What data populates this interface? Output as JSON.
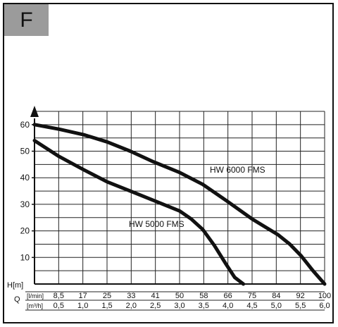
{
  "badge": {
    "label": "F"
  },
  "chart_data": {
    "type": "line",
    "title": "",
    "ylabel": "H[m]",
    "xlabel": "Q",
    "ylim": [
      0,
      65
    ],
    "y_ticks": [
      10,
      20,
      30,
      40,
      50,
      60
    ],
    "x_unit_primary": "[l/min]",
    "x_unit_secondary": "[m³/h]",
    "x_ticks_lmin": [
      "8,5",
      "17",
      "25",
      "33",
      "41",
      "50",
      "58",
      "66",
      "75",
      "84",
      "92",
      "100"
    ],
    "x_ticks_m3h": [
      "0,5",
      "1,0",
      "1,5",
      "2,0",
      "2,5",
      "3,0",
      "3,5",
      "4,0",
      "4,5",
      "5,0",
      "5,5",
      "6,0"
    ],
    "xlim": [
      0,
      100
    ],
    "grid": true,
    "series": [
      {
        "name": "HW 6000 FMS",
        "x": [
          0,
          8.5,
          17,
          25,
          33,
          41,
          50,
          58,
          66,
          75,
          84,
          88,
          92,
          96,
          100
        ],
        "y": [
          60,
          58.3,
          56.2,
          53.5,
          50,
          46,
          42,
          37.5,
          31.5,
          24.5,
          18.5,
          15,
          10.5,
          5,
          0
        ]
      },
      {
        "name": "HW 5000 FMS",
        "x": [
          0,
          8.5,
          17,
          25,
          33,
          41,
          50,
          54,
          58,
          62,
          66,
          69,
          72
        ],
        "y": [
          54,
          48,
          43,
          38.5,
          35,
          31.5,
          27.5,
          24.5,
          20.5,
          14.5,
          7.5,
          2.5,
          0
        ]
      }
    ]
  }
}
